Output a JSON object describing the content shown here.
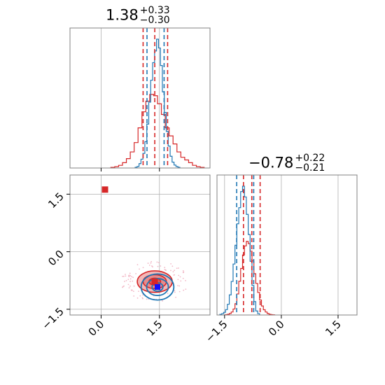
{
  "chart_data": {
    "type": "corner",
    "colors": {
      "red": "#d62728",
      "blue": "#1f77b4",
      "grid": "#b0b0b0",
      "frame": "#808080"
    },
    "panels": [
      {
        "kind": "histogram",
        "parameter_index": 0,
        "title": {
          "value": "1.38",
          "plus": "+0.33",
          "minus": "−0.30"
        },
        "xlim": [
          -0.8,
          2.8
        ],
        "x_gridlines": [
          0.0,
          1.5
        ],
        "red_series": {
          "bin_centers": [
            0.3,
            0.4,
            0.5,
            0.6,
            0.7,
            0.8,
            0.9,
            1.0,
            1.1,
            1.2,
            1.3,
            1.4,
            1.5,
            1.6,
            1.7,
            1.8,
            1.9,
            2.0,
            2.1,
            2.2,
            2.3,
            2.4,
            2.5,
            2.6
          ],
          "counts": [
            0.5,
            1,
            2,
            4,
            7,
            12,
            19,
            30,
            42,
            50,
            55,
            54,
            48,
            40,
            30,
            24,
            18,
            12,
            8,
            6,
            4,
            2,
            1,
            0.5
          ]
        },
        "blue_series": {
          "bin_centers": [
            0.9,
            0.95,
            1.0,
            1.05,
            1.1,
            1.15,
            1.2,
            1.25,
            1.3,
            1.35,
            1.4,
            1.45,
            1.5,
            1.55,
            1.6,
            1.65,
            1.7,
            1.75,
            1.8,
            1.85,
            1.9,
            1.95,
            2.0
          ],
          "counts": [
            0.5,
            1,
            3,
            6,
            10,
            18,
            30,
            45,
            60,
            72,
            80,
            88,
            82,
            70,
            52,
            38,
            25,
            15,
            8,
            4,
            2,
            1,
            0.5
          ]
        },
        "red_quantile_lines": [
          1.08,
          1.38,
          1.71
        ],
        "blue_quantile_lines": [
          1.18,
          1.62
        ]
      },
      {
        "kind": "histogram",
        "parameter_index": 1,
        "title": {
          "value": "−0.78",
          "plus": "+0.22",
          "minus": "−0.21"
        },
        "xlim": [
          -1.7,
          2.0
        ],
        "x_ticks": [
          -1.5,
          0.0,
          1.5
        ],
        "x_tick_labels": [
          "−1.5",
          "0.0",
          "1.5"
        ],
        "red_series": {
          "bin_centers": [
            -1.45,
            -1.4,
            -1.35,
            -1.3,
            -1.25,
            -1.2,
            -1.15,
            -1.1,
            -1.05,
            -1.0,
            -0.95,
            -0.9,
            -0.85,
            -0.8,
            -0.75,
            -0.7,
            -0.65,
            -0.6,
            -0.55,
            -0.5,
            -0.45,
            -0.4,
            -0.35,
            -0.3,
            -0.25,
            -0.2
          ],
          "counts": [
            0.5,
            1,
            2,
            4,
            8,
            15,
            28,
            45,
            62,
            80,
            92,
            98,
            95,
            85,
            72,
            55,
            42,
            30,
            20,
            12,
            7,
            4,
            2,
            1,
            0.5,
            0.3
          ]
        },
        "blue_series": {
          "bin_centers": [
            -1.6,
            -1.55,
            -1.5,
            -1.45,
            -1.4,
            -1.35,
            -1.3,
            -1.25,
            -1.2,
            -1.15,
            -1.1,
            -1.05,
            -1.0,
            -0.95,
            -0.9,
            -0.85,
            -0.8,
            -0.75,
            -0.7,
            -0.65,
            -0.6
          ],
          "counts": [
            0.5,
            1,
            2,
            4,
            8,
            15,
            25,
            38,
            52,
            68,
            80,
            92,
            96,
            88,
            75,
            60,
            40,
            22,
            10,
            3,
            1
          ]
        },
        "red_quantile_lines": [
          -1.0,
          -0.78,
          -0.56
        ],
        "blue_quantile_lines": [
          -1.18,
          -0.73
        ]
      },
      {
        "kind": "2d",
        "x_parameter_index": 0,
        "y_parameter_index": 1,
        "xlim": [
          -0.8,
          2.8
        ],
        "ylim": [
          -1.65,
          2.0
        ],
        "x_ticks": [
          0.0,
          1.5
        ],
        "x_tick_labels": [
          "0.0",
          "1.5"
        ],
        "y_ticks": [
          -1.5,
          0.0,
          1.5
        ],
        "y_tick_labels": [
          "−1.5",
          "0.0",
          "1.5"
        ],
        "red_contours": [
          {
            "center": [
              1.38,
              -0.78
            ],
            "radius": [
              0.45,
              0.28
            ]
          },
          {
            "center": [
              1.38,
              -0.78
            ],
            "radius": [
              0.3,
              0.18
            ]
          },
          {
            "center": [
              1.38,
              -0.78
            ],
            "radius": [
              0.15,
              0.09
            ]
          }
        ],
        "blue_contours": [
          {
            "center": [
              1.45,
              -0.92
            ],
            "radius": [
              0.42,
              0.34
            ]
          },
          {
            "center": [
              1.45,
              -0.92
            ],
            "radius": [
              0.28,
              0.22
            ]
          },
          {
            "center": [
              1.45,
              -0.92
            ],
            "radius": [
              0.14,
              0.11
            ]
          }
        ],
        "red_markers": [
          [
            0.1,
            1.62
          ],
          [
            1.38,
            -0.78
          ]
        ],
        "blue_markers": [
          [
            1.45,
            -0.92
          ]
        ]
      }
    ]
  }
}
